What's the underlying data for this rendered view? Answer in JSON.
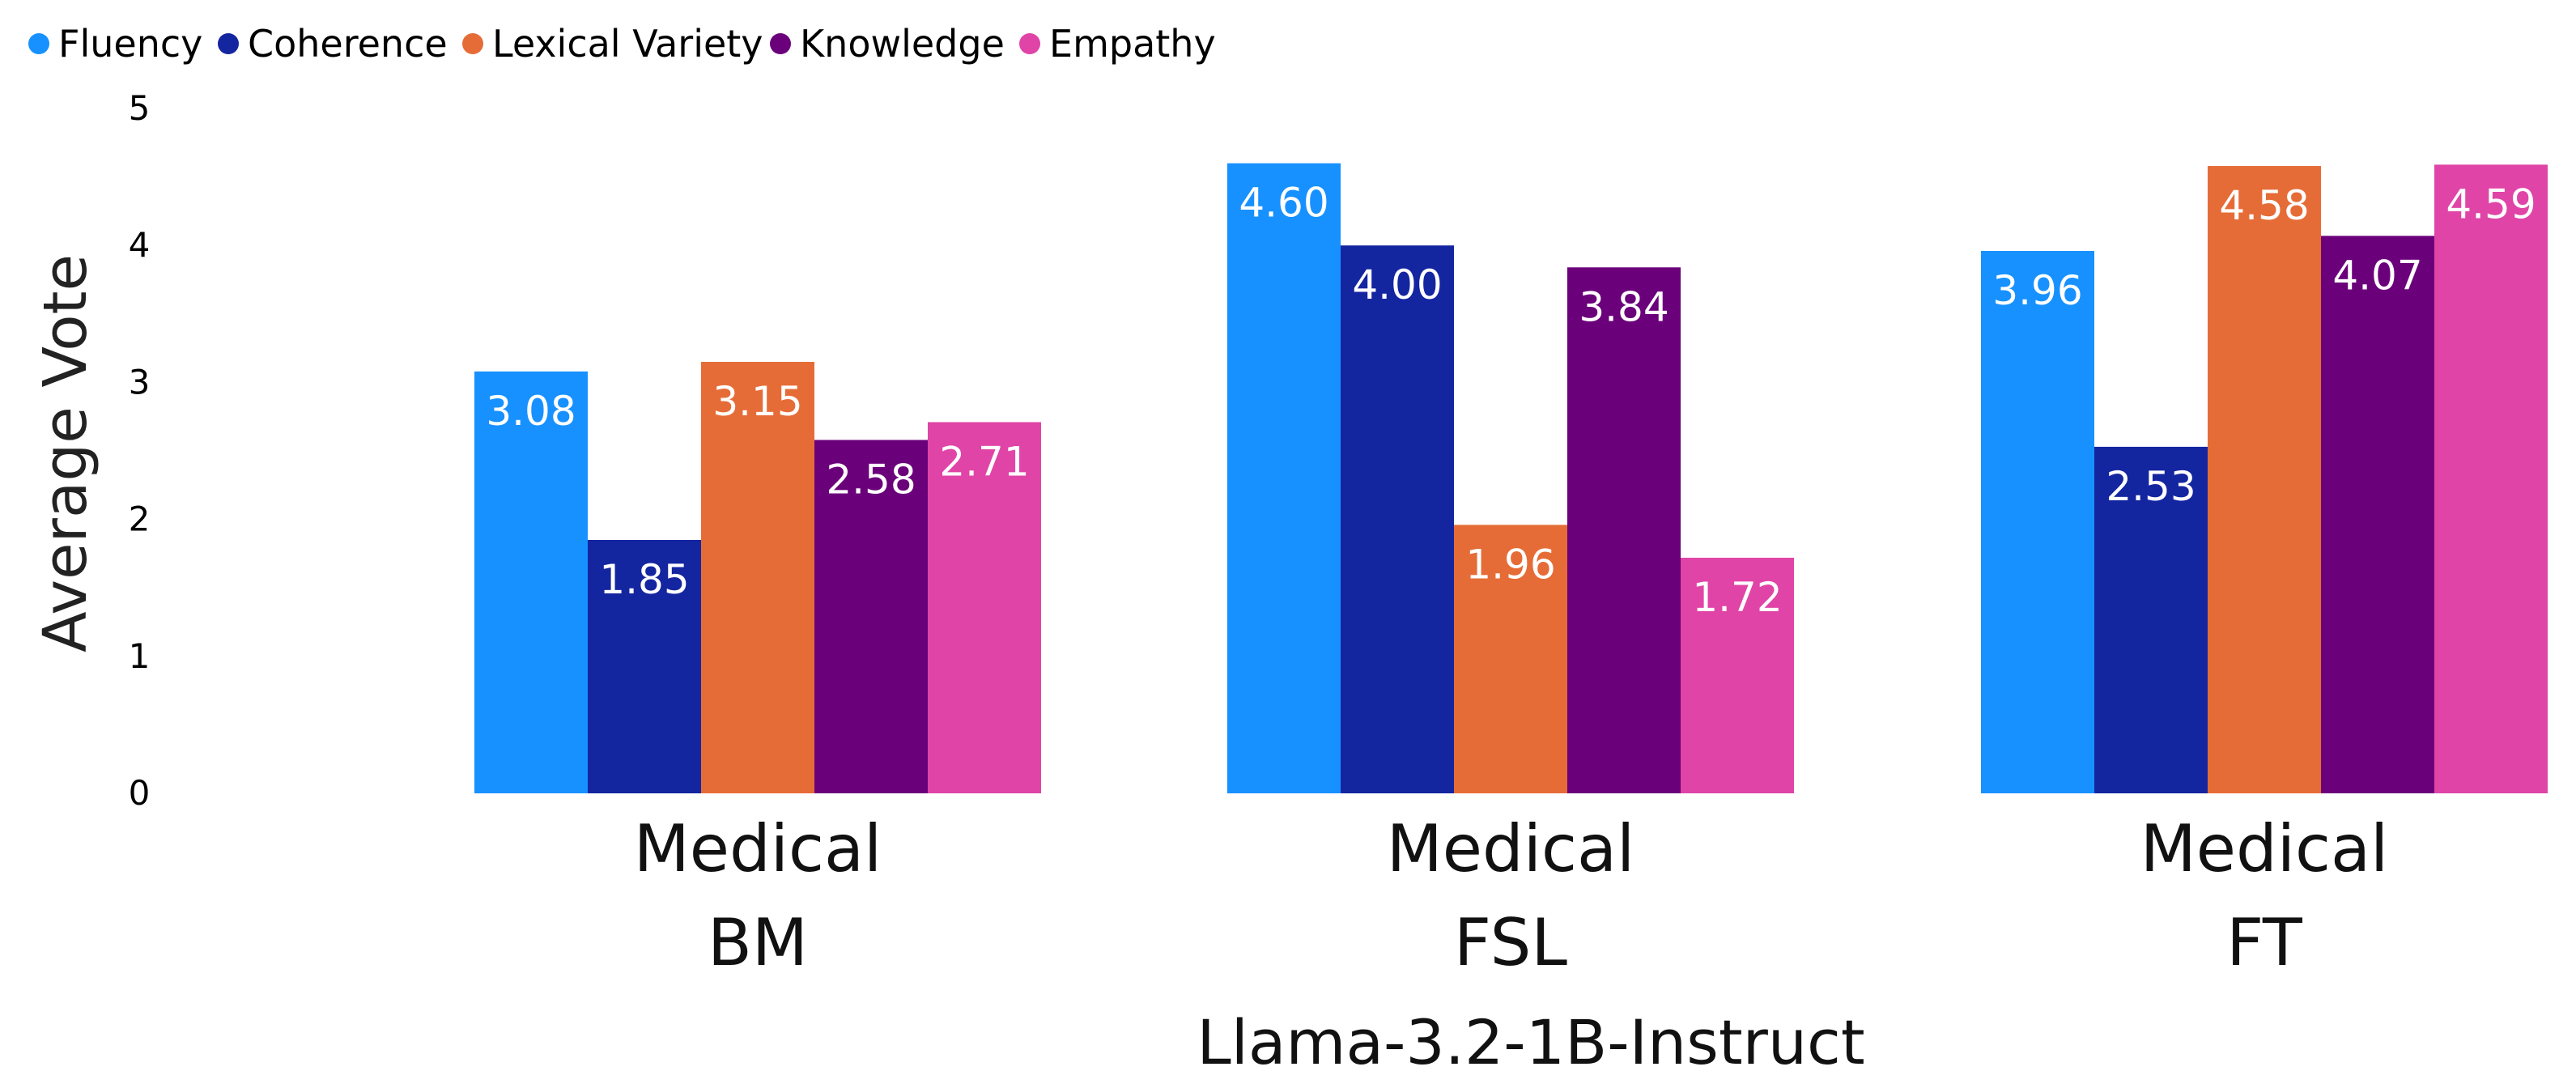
{
  "chart_data": {
    "type": "bar",
    "title": "",
    "xlabel": "Llama-3.2-1B-Instruct",
    "ylabel": "Average Vote",
    "ylim": [
      0,
      5
    ],
    "yticks": [
      "0",
      "1",
      "2",
      "3",
      "4",
      "5"
    ],
    "grid": false,
    "legend_position": "top-left",
    "categories": [
      {
        "line1": "Medical",
        "line2": "BM"
      },
      {
        "line1": "Medical",
        "line2": "FSL"
      },
      {
        "line1": "Medical",
        "line2": "FT"
      }
    ],
    "series": [
      {
        "name": "Fluency",
        "color": "#1791FF",
        "values": [
          3.08,
          4.6,
          3.96
        ],
        "labels": [
          "3.08",
          "4.60",
          "3.96"
        ]
      },
      {
        "name": "Coherence",
        "color": "#1425A0",
        "values": [
          1.85,
          4.0,
          2.53
        ],
        "labels": [
          "1.85",
          "4.00",
          "2.53"
        ]
      },
      {
        "name": "Lexical Variety",
        "color": "#E66C37",
        "values": [
          3.15,
          1.96,
          4.58
        ],
        "labels": [
          "3.15",
          "1.96",
          "4.58"
        ]
      },
      {
        "name": "Knowledge",
        "color": "#6B007B",
        "values": [
          2.58,
          3.84,
          4.07
        ],
        "labels": [
          "2.58",
          "3.84",
          "4.07"
        ]
      },
      {
        "name": "Empathy",
        "color": "#E044A7",
        "values": [
          2.71,
          1.72,
          4.59
        ],
        "labels": [
          "2.71",
          "1.72",
          "4.59"
        ]
      }
    ]
  }
}
